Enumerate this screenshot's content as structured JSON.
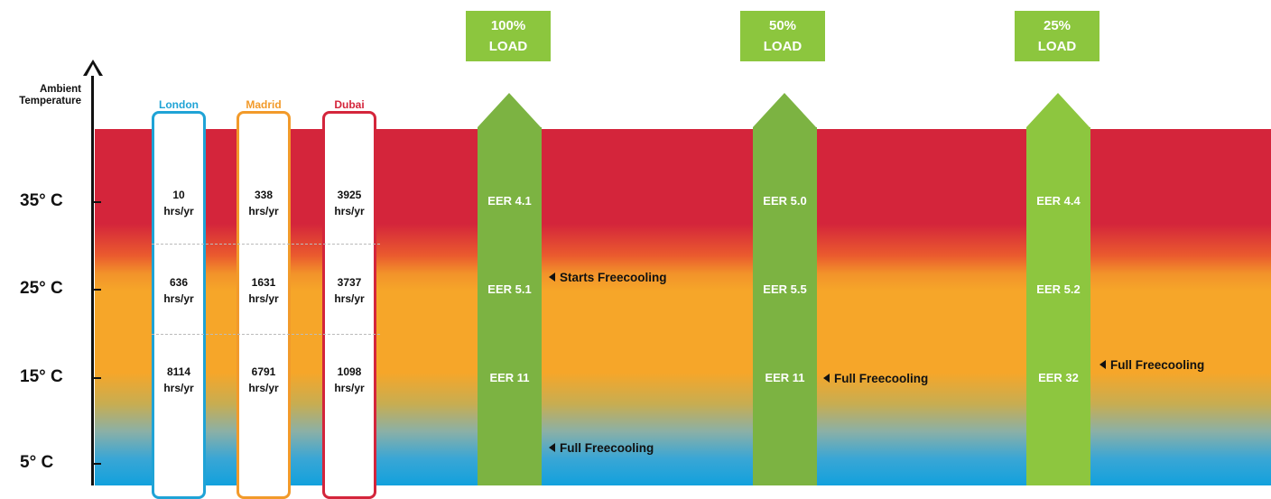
{
  "axis": {
    "title_line1": "Ambient",
    "title_line2": "Temperature",
    "labels": [
      "35° C",
      "25° C",
      "15° C",
      "5° C"
    ]
  },
  "cities": [
    {
      "name": "London",
      "color": "#1fa3d6",
      "hours": [
        "10",
        "636",
        "8114"
      ]
    },
    {
      "name": "Madrid",
      "color": "#f29a2a",
      "hours": [
        "338",
        "1631",
        "6791"
      ]
    },
    {
      "name": "Dubai",
      "color": "#d4253b",
      "hours": [
        "3925",
        "3737",
        "1098"
      ]
    }
  ],
  "hours_unit": "hrs/yr",
  "loads": [
    {
      "line1": "100%",
      "line2": "LOAD",
      "eer": [
        "EER 4.1",
        "EER 5.1",
        "EER 11"
      ],
      "color": "#7cb342"
    },
    {
      "line1": "50%",
      "line2": "LOAD",
      "eer": [
        "EER 5.0",
        "EER 5.5",
        "EER 11"
      ],
      "color": "#7cb342"
    },
    {
      "line1": "25%",
      "line2": "LOAD",
      "eer": [
        "EER 4.4",
        "EER 5.2",
        "EER 32"
      ],
      "color": "#8dc63f"
    }
  ],
  "annotations": {
    "starts_freecooling": "Starts Freecooling",
    "full_freecooling": "Full Freecooling"
  }
}
